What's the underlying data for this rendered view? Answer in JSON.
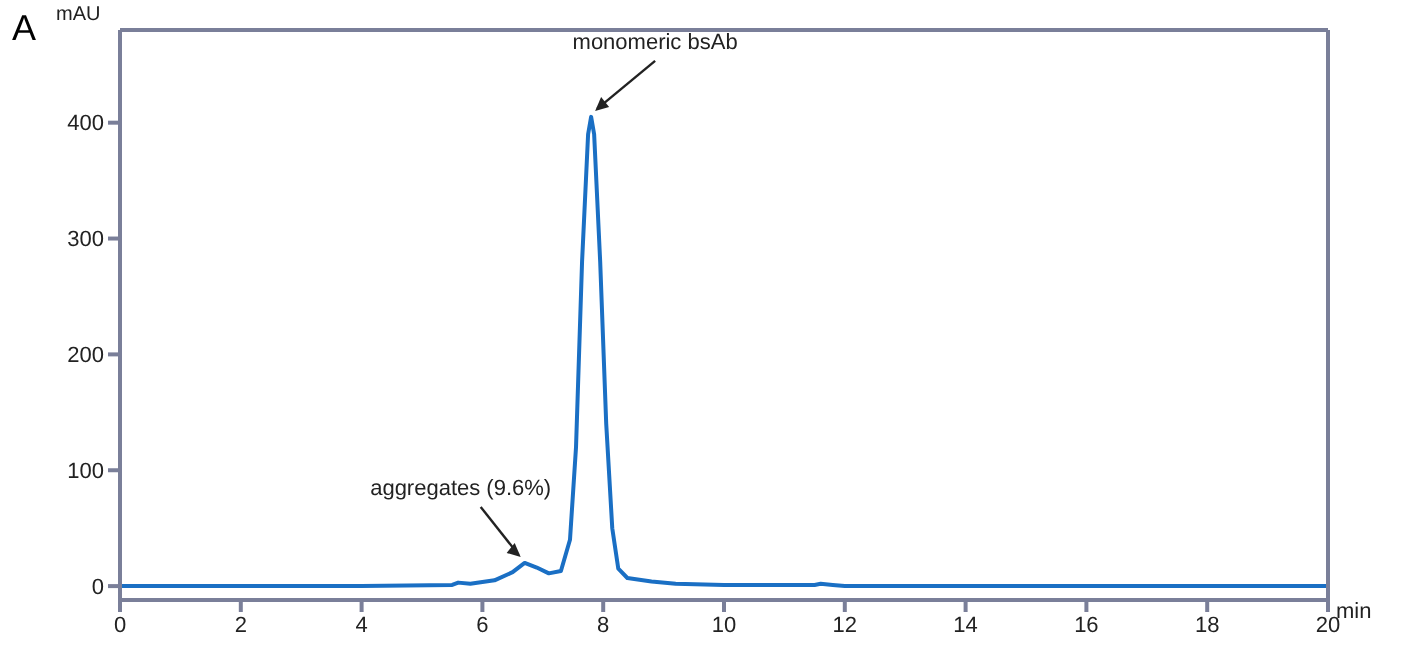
{
  "chart_data": {
    "type": "line",
    "xlabel": "min",
    "ylabel": "mAU",
    "annotations": [
      "A",
      {
        "text": "aggregates (9.6%)",
        "x": 6.7,
        "y": 20
      },
      {
        "text": "monomeric bsAb",
        "x": 7.8,
        "y": 405
      }
    ],
    "x": [
      0,
      2,
      4,
      5.5,
      5.6,
      5.8,
      6.2,
      6.5,
      6.7,
      6.9,
      7.1,
      7.3,
      7.45,
      7.55,
      7.65,
      7.75,
      7.8,
      7.85,
      7.95,
      8.05,
      8.15,
      8.25,
      8.4,
      8.8,
      9.2,
      10,
      11.5,
      11.6,
      11.8,
      12,
      14,
      16,
      18,
      20
    ],
    "series": [
      {
        "color": "#1a6fc4",
        "values": [
          0,
          0,
          0,
          1,
          3,
          2,
          5,
          12,
          20,
          16,
          11,
          13,
          40,
          120,
          280,
          390,
          405,
          390,
          280,
          140,
          50,
          15,
          7,
          4,
          2,
          1,
          1,
          2,
          1,
          0,
          0,
          0,
          0,
          0
        ]
      }
    ],
    "xlim": [
      0,
      20
    ],
    "xticks": [
      0,
      2,
      4,
      6,
      8,
      10,
      12,
      14,
      16,
      18,
      20
    ],
    "ylim": [
      -12,
      480
    ],
    "yticks": [
      0,
      100,
      200,
      300,
      400
    ],
    "marker": "none",
    "line_style": "solid"
  }
}
